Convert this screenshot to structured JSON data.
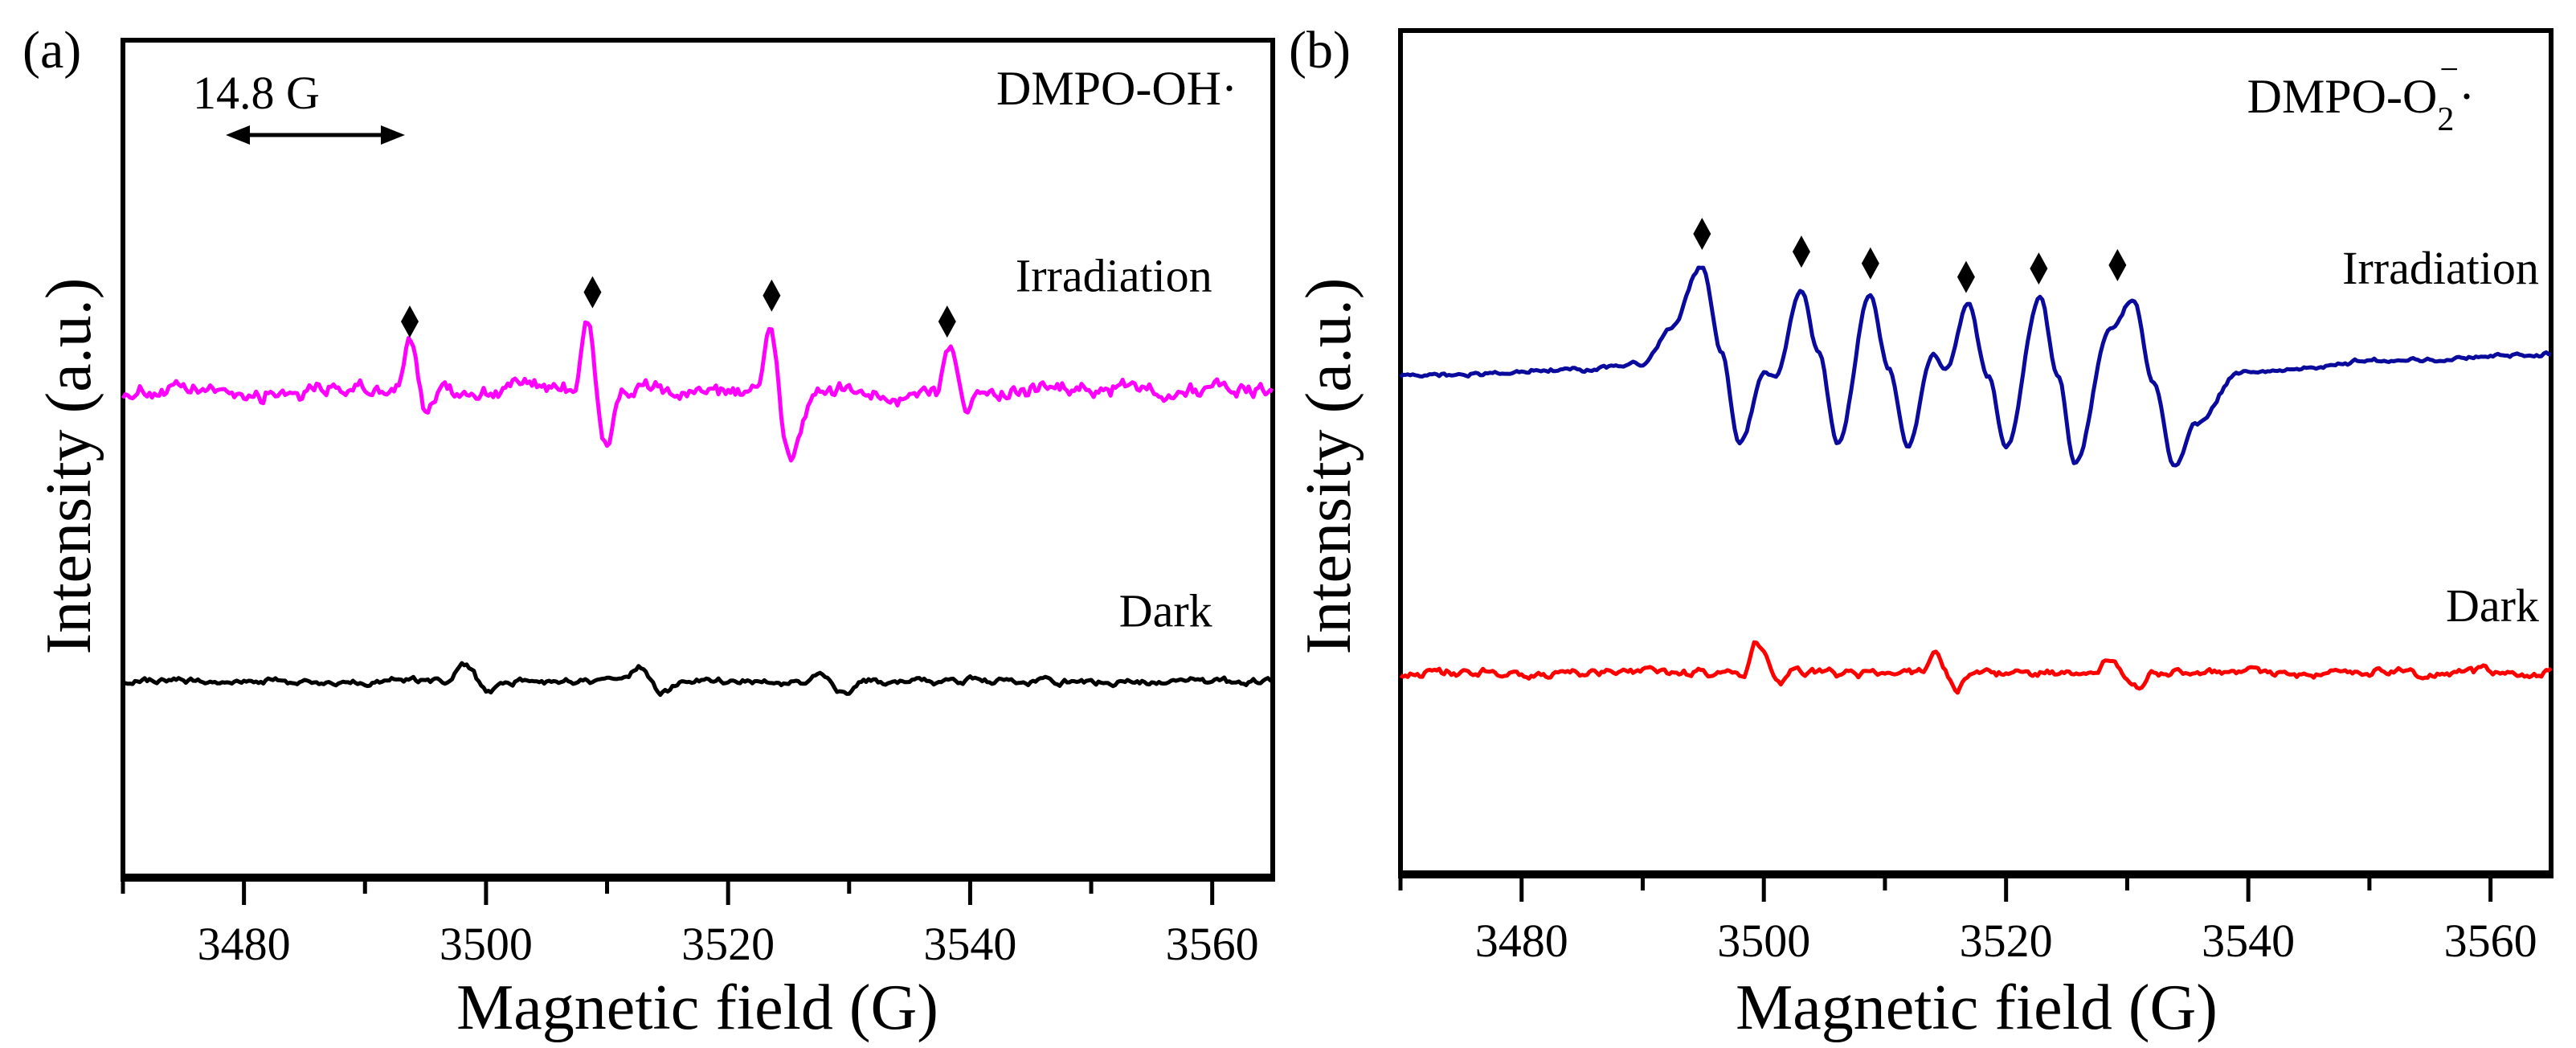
{
  "chart_data": [
    {
      "type": "line",
      "panel_label": "(a)",
      "title": {
        "main": "DMPO-OH",
        "sub": "",
        "sup": "",
        "dot": "·"
      },
      "xlabel": "Magnetic field (G)",
      "ylabel": "Intensity (a.u.)",
      "xlim": [
        3470,
        3565
      ],
      "ylim": [
        0,
        100
      ],
      "xticks": [
        3480,
        3500,
        3520,
        3540,
        3560
      ],
      "minor_xticks": [
        3470,
        3490,
        3510,
        3530,
        3550
      ],
      "grid": false,
      "scale_bar": {
        "label": "14.8 G",
        "from": 3478.5,
        "to": 3493.3
      },
      "markers": {
        "symbol": "diamond",
        "points": [
          [
            3493.7,
            66.4
          ],
          [
            3508.8,
            69.9
          ],
          [
            3523.6,
            69.5
          ],
          [
            3538.1,
            66.4
          ]
        ]
      },
      "series": [
        {
          "name": "Irradiation",
          "color": "#ff00ff",
          "noise": 1.3,
          "label_pos": [
            3560,
            70
          ],
          "points": [
            [
              3470,
              58
            ],
            [
              3492.5,
              58
            ],
            [
              3493.7,
              63.7
            ],
            [
              3495.0,
              55.8
            ],
            [
              3496.2,
              58
            ],
            [
              3507.3,
              59
            ],
            [
              3508.4,
              66.6
            ],
            [
              3509.8,
              51.6
            ],
            [
              3511.5,
              58
            ],
            [
              3522.3,
              58
            ],
            [
              3523.4,
              65.4
            ],
            [
              3525.0,
              49.9
            ],
            [
              3527.5,
              58
            ],
            [
              3537.2,
              58
            ],
            [
              3538.4,
              63.7
            ],
            [
              3539.6,
              56.6
            ],
            [
              3541,
              58
            ],
            [
              3565,
              58.5
            ]
          ]
        },
        {
          "name": "Dark",
          "color": "#000000",
          "noise": 0.5,
          "label_pos": [
            3560,
            30
          ],
          "points": [
            [
              3470,
              23.4
            ],
            [
              3497,
              23.4
            ],
            [
              3498.1,
              25.8
            ],
            [
              3500.2,
              22.5
            ],
            [
              3501.5,
              23.4
            ],
            [
              3511.5,
              23.4
            ],
            [
              3512.7,
              25.0
            ],
            [
              3514.6,
              22.3
            ],
            [
              3516,
              23.4
            ],
            [
              3526.3,
              23.4
            ],
            [
              3527.3,
              24.6
            ],
            [
              3529.7,
              22.1
            ],
            [
              3531,
              23.4
            ],
            [
              3565,
              23.4
            ]
          ]
        }
      ]
    },
    {
      "type": "line",
      "panel_label": "(b)",
      "title": {
        "main": "DMPO-O",
        "sub": "2",
        "sup": "−",
        "dot": "·"
      },
      "xlabel": "Magnetic field (G)",
      "ylabel": "Intensity (a.u.)",
      "xlim": [
        3470,
        3565
      ],
      "ylim": [
        0,
        100
      ],
      "xticks": [
        3480,
        3500,
        3520,
        3540,
        3560
      ],
      "minor_xticks": [
        3470,
        3490,
        3510,
        3530,
        3550
      ],
      "grid": false,
      "markers": {
        "symbol": "diamond",
        "points": [
          [
            3494.9,
            75.9
          ],
          [
            3503.1,
            73.8
          ],
          [
            3508.8,
            72.4
          ],
          [
            3516.7,
            70.8
          ],
          [
            3522.7,
            71.8
          ],
          [
            3529.2,
            72.2
          ]
        ]
      },
      "series": [
        {
          "name": "Irradiation",
          "color": "#0a0a9c",
          "noise": 0.35,
          "label_pos": [
            3564,
            70
          ],
          "points": [
            [
              3470,
              59.1
            ],
            [
              3485,
              59.8
            ],
            [
              3490.1,
              60.6
            ],
            [
              3492.3,
              64.7
            ],
            [
              3494.9,
              72
            ],
            [
              3496.5,
              62
            ],
            [
              3498.0,
              51.1
            ],
            [
              3500.1,
              59.5
            ],
            [
              3501.0,
              59
            ],
            [
              3503.1,
              69.2
            ],
            [
              3504.5,
              62
            ],
            [
              3506.1,
              50.9
            ],
            [
              3508.8,
              68.7
            ],
            [
              3510.3,
              60
            ],
            [
              3511.9,
              50.7
            ],
            [
              3514.0,
              61.7
            ],
            [
              3515.0,
              59.9
            ],
            [
              3516.9,
              67.5
            ],
            [
              3518.5,
              59
            ],
            [
              3520.0,
              50.5
            ],
            [
              3522.8,
              68.1
            ],
            [
              3524.3,
              59
            ],
            [
              3525.7,
              48.7
            ],
            [
              3528.6,
              64.9
            ],
            [
              3530.5,
              68.1
            ],
            [
              3532.2,
              58
            ],
            [
              3533.9,
              48.3
            ],
            [
              3535.7,
              53.5
            ],
            [
              3539.3,
              59.4
            ],
            [
              3550,
              60.8
            ],
            [
              3565,
              61.7
            ]
          ]
        },
        {
          "name": "Dark",
          "color": "#ff0000",
          "noise": 0.6,
          "label_pos": [
            3564,
            30
          ],
          "points": [
            [
              3470,
              23.9
            ],
            [
              3498.4,
              23.9
            ],
            [
              3499.4,
              27.4
            ],
            [
              3501.4,
              22.6
            ],
            [
              3502.6,
              23.9
            ],
            [
              3513,
              23.9
            ],
            [
              3514.0,
              26.3
            ],
            [
              3516.0,
              21.9
            ],
            [
              3517.2,
              23.9
            ],
            [
              3527.4,
              23.9
            ],
            [
              3528.4,
              25.7
            ],
            [
              3530.8,
              21.9
            ],
            [
              3532,
              23.9
            ],
            [
              3565,
              23.9
            ]
          ]
        }
      ]
    }
  ]
}
